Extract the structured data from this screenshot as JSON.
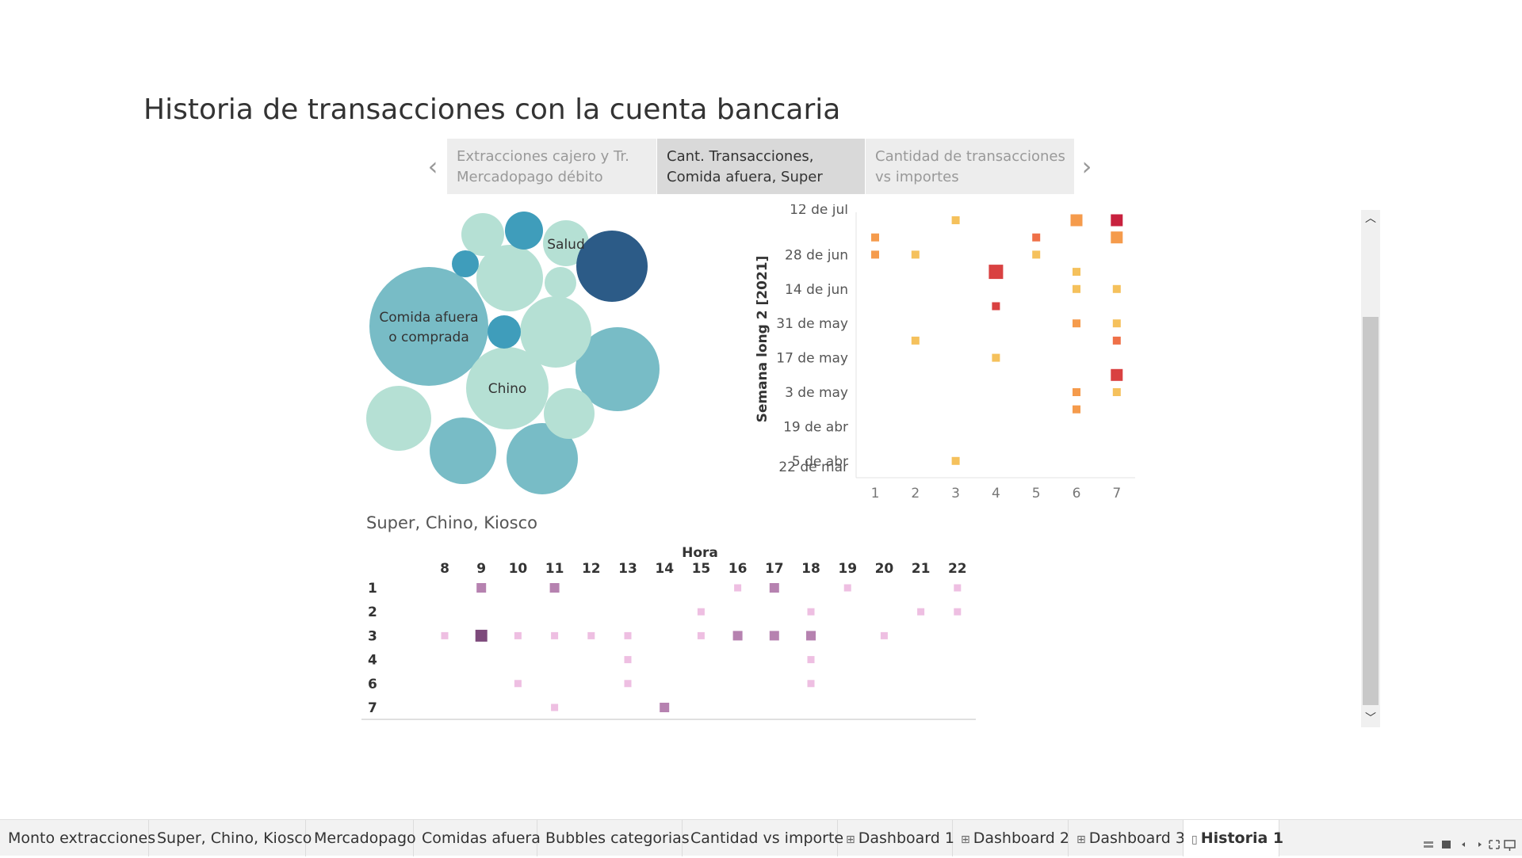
{
  "title": "Historia de transacciones con la cuenta bancaria",
  "story": {
    "points": [
      {
        "line1": "Extracciones cajero y Tr.",
        "line2": "Mercadopago débito",
        "active": false
      },
      {
        "line1": "Cant. Transacciones,",
        "line2": "Comida afuera, Super",
        "active": true
      },
      {
        "line1": "Cantidad de transacciones",
        "line2": "vs importes",
        "active": false
      }
    ],
    "prev_icon": "chevron-left-icon",
    "next_icon": "chevron-right-icon"
  },
  "colors": {
    "bubble_light": "#b5e0d4",
    "bubble_mid": "#78bcc6",
    "bubble_teal": "#3f9dbb",
    "bubble_dark": "#2c5b87",
    "heat_yellow": "#f5c15c",
    "heat_orange": "#f59b4c",
    "heat_redorange": "#ef7048",
    "heat_red": "#d94141",
    "heat_crimson": "#c8213e",
    "hora_light": "#eebfe2",
    "hora_mid": "#b682b0",
    "hora_dark": "#7d4a7b"
  },
  "chart_data": [
    {
      "type": "bubble",
      "labels_visible": [
        "Comida afuera o comprada",
        "Chino",
        "Salud"
      ],
      "bubbles": [
        {
          "label": "Comida afuera o comprada",
          "level": "mid",
          "size": 75
        },
        {
          "label": "Chino",
          "level": "light",
          "size": 52
        },
        {
          "label": "Salud",
          "level": "light",
          "size": 29
        },
        {
          "label": "",
          "level": "dark",
          "size": 45
        },
        {
          "label": "",
          "level": "mid",
          "size": 53
        },
        {
          "label": "",
          "level": "mid",
          "size": 45
        },
        {
          "label": "",
          "level": "mid",
          "size": 42
        },
        {
          "label": "",
          "level": "light",
          "size": 45
        },
        {
          "label": "",
          "level": "light",
          "size": 41
        },
        {
          "label": "",
          "level": "light",
          "size": 42
        },
        {
          "label": "",
          "level": "light",
          "size": 32
        },
        {
          "label": "",
          "level": "light",
          "size": 27
        },
        {
          "label": "",
          "level": "light",
          "size": 20
        },
        {
          "label": "",
          "level": "teal",
          "size": 24
        },
        {
          "label": "",
          "level": "teal",
          "size": 21
        },
        {
          "label": "",
          "level": "teal",
          "size": 17
        }
      ]
    },
    {
      "type": "heatmap",
      "ylabel": "Semana long 2 [2021]",
      "x_ticks": [
        "1",
        "2",
        "3",
        "4",
        "5",
        "6",
        "7"
      ],
      "y_ticks": [
        "12 de jul",
        "28 de jun",
        "14 de jun",
        "31 de may",
        "17 de may",
        "3 de may",
        "19 de abr",
        "5 de abr",
        "22 de mar"
      ],
      "weeks": [
        "12 de jul",
        "5 de jul",
        "28 de jun",
        "21 de jun",
        "14 de jun",
        "7 de jun",
        "31 de may",
        "24 de may",
        "17 de may",
        "10 de may",
        "3 de may",
        "26 de abr",
        "19 de abr",
        "12 de abr",
        "5 de abr",
        "29 de mar",
        "22 de mar"
      ],
      "cells": [
        {
          "week": "12 de jul",
          "day": 3,
          "level": "yellow",
          "size": 1
        },
        {
          "week": "12 de jul",
          "day": 6,
          "level": "orange",
          "size": 2
        },
        {
          "week": "12 de jul",
          "day": 7,
          "level": "crimson",
          "size": 2
        },
        {
          "week": "5 de jul",
          "day": 1,
          "level": "orange",
          "size": 1
        },
        {
          "week": "5 de jul",
          "day": 5,
          "level": "redorange",
          "size": 1
        },
        {
          "week": "5 de jul",
          "day": 7,
          "level": "orange",
          "size": 2
        },
        {
          "week": "28 de jun",
          "day": 1,
          "level": "orange",
          "size": 1
        },
        {
          "week": "28 de jun",
          "day": 2,
          "level": "yellow",
          "size": 1
        },
        {
          "week": "28 de jun",
          "day": 5,
          "level": "yellow",
          "size": 1
        },
        {
          "week": "21 de jun",
          "day": 4,
          "level": "red",
          "size": 3
        },
        {
          "week": "21 de jun",
          "day": 6,
          "level": "yellow",
          "size": 1
        },
        {
          "week": "14 de jun",
          "day": 6,
          "level": "yellow",
          "size": 1
        },
        {
          "week": "14 de jun",
          "day": 7,
          "level": "yellow",
          "size": 1
        },
        {
          "week": "7 de jun",
          "day": 4,
          "level": "red",
          "size": 1
        },
        {
          "week": "31 de may",
          "day": 6,
          "level": "orange",
          "size": 1
        },
        {
          "week": "31 de may",
          "day": 7,
          "level": "yellow",
          "size": 1
        },
        {
          "week": "24 de may",
          "day": 2,
          "level": "yellow",
          "size": 1
        },
        {
          "week": "24 de may",
          "day": 7,
          "level": "redorange",
          "size": 1
        },
        {
          "week": "17 de may",
          "day": 4,
          "level": "yellow",
          "size": 1
        },
        {
          "week": "10 de may",
          "day": 7,
          "level": "red",
          "size": 2
        },
        {
          "week": "3 de may",
          "day": 6,
          "level": "orange",
          "size": 1
        },
        {
          "week": "3 de may",
          "day": 7,
          "level": "yellow",
          "size": 1
        },
        {
          "week": "26 de abr",
          "day": 6,
          "level": "orange",
          "size": 1
        },
        {
          "week": "5 de abr",
          "day": 3,
          "level": "yellow",
          "size": 1
        }
      ]
    },
    {
      "type": "heatmap",
      "title": "Super, Chino, Kiosco",
      "xlabel": "Hora",
      "x_ticks": [
        "8",
        "9",
        "10",
        "11",
        "12",
        "13",
        "14",
        "15",
        "16",
        "17",
        "18",
        "19",
        "20",
        "21",
        "22"
      ],
      "y_ticks": [
        "1",
        "2",
        "3",
        "4",
        "6",
        "7"
      ],
      "cells": [
        {
          "row": "1",
          "hour": 9,
          "level": "mid"
        },
        {
          "row": "1",
          "hour": 11,
          "level": "mid"
        },
        {
          "row": "1",
          "hour": 16,
          "level": "light"
        },
        {
          "row": "1",
          "hour": 17,
          "level": "mid"
        },
        {
          "row": "1",
          "hour": 19,
          "level": "light"
        },
        {
          "row": "1",
          "hour": 22,
          "level": "light"
        },
        {
          "row": "2",
          "hour": 15,
          "level": "light"
        },
        {
          "row": "2",
          "hour": 18,
          "level": "light"
        },
        {
          "row": "2",
          "hour": 21,
          "level": "light"
        },
        {
          "row": "2",
          "hour": 22,
          "level": "light"
        },
        {
          "row": "3",
          "hour": 8,
          "level": "light"
        },
        {
          "row": "3",
          "hour": 9,
          "level": "dark"
        },
        {
          "row": "3",
          "hour": 10,
          "level": "light"
        },
        {
          "row": "3",
          "hour": 11,
          "level": "light"
        },
        {
          "row": "3",
          "hour": 12,
          "level": "light"
        },
        {
          "row": "3",
          "hour": 13,
          "level": "light"
        },
        {
          "row": "3",
          "hour": 15,
          "level": "light"
        },
        {
          "row": "3",
          "hour": 16,
          "level": "mid"
        },
        {
          "row": "3",
          "hour": 17,
          "level": "mid"
        },
        {
          "row": "3",
          "hour": 18,
          "level": "mid"
        },
        {
          "row": "3",
          "hour": 20,
          "level": "light"
        },
        {
          "row": "4",
          "hour": 13,
          "level": "light"
        },
        {
          "row": "4",
          "hour": 18,
          "level": "light"
        },
        {
          "row": "6",
          "hour": 10,
          "level": "light"
        },
        {
          "row": "6",
          "hour": 13,
          "level": "light"
        },
        {
          "row": "6",
          "hour": 18,
          "level": "light"
        },
        {
          "row": "7",
          "hour": 11,
          "level": "light"
        },
        {
          "row": "7",
          "hour": 14,
          "level": "mid"
        }
      ]
    }
  ],
  "tabs": [
    {
      "label": "Monto extracciones",
      "icon": "",
      "active": false
    },
    {
      "label": "Super, Chino, Kiosco",
      "icon": "",
      "active": false
    },
    {
      "label": "Mercadopago",
      "icon": "",
      "active": false
    },
    {
      "label": "Comidas afuera",
      "icon": "",
      "active": false
    },
    {
      "label": "Bubbles categorias",
      "icon": "",
      "active": false
    },
    {
      "label": "Cantidad vs importe",
      "icon": "",
      "active": false
    },
    {
      "label": "Dashboard 1",
      "icon": "dashboard-icon",
      "active": false
    },
    {
      "label": "Dashboard 2",
      "icon": "dashboard-icon",
      "active": false
    },
    {
      "label": "Dashboard 3",
      "icon": "dashboard-icon",
      "active": false
    },
    {
      "label": "Historia 1",
      "icon": "story-icon",
      "active": true
    }
  ],
  "scroll": {
    "up_icon": "chevron-up-icon",
    "down_icon": "chevron-down-icon"
  },
  "tabbar_controls": [
    "filmstrip-icon",
    "tabs-icon",
    "prev-sheet-icon",
    "next-sheet-icon",
    "fullscreen-icon",
    "present-icon"
  ]
}
